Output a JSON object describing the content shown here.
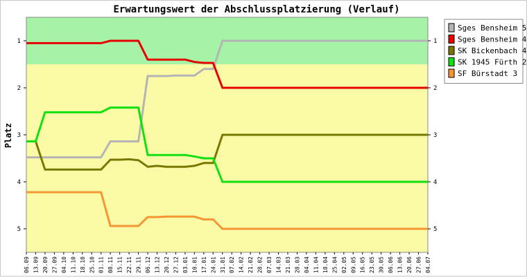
{
  "chart_data": {
    "type": "line",
    "title": "Erwartungswert der Abschlussplatzierung (Verlauf)",
    "ylabel": "Platz",
    "xlabel": "",
    "ylim": [
      0.5,
      5.5
    ],
    "y_ticks": [
      "1",
      "2",
      "3",
      "4",
      "5"
    ],
    "y_reversed": true,
    "bands": [
      {
        "from": 0.5,
        "to": 1.5,
        "color": "#a6f2a6"
      },
      {
        "from": 1.5,
        "to": 5.5,
        "color": "#fafaa6"
      }
    ],
    "x": [
      "06.09",
      "13.09",
      "20.09",
      "27.09",
      "04.10",
      "11.10",
      "18.10",
      "25.10",
      "01.11",
      "08.11",
      "15.11",
      "22.11",
      "29.11",
      "06.12",
      "13.12",
      "20.12",
      "27.12",
      "03.01",
      "10.01",
      "17.01",
      "24.01",
      "31.01",
      "07.02",
      "14.02",
      "21.02",
      "28.02",
      "07.03",
      "14.03",
      "21.03",
      "28.03",
      "04.04",
      "11.04",
      "18.04",
      "25.04",
      "02.05",
      "09.05",
      "16.05",
      "23.05",
      "30.05",
      "06.06",
      "13.06",
      "20.06",
      "27.06",
      "04.07"
    ],
    "series": [
      {
        "name": "Sges Bensheim 5",
        "color": "#b4b4b4",
        "values": [
          3.48,
          3.48,
          3.48,
          3.48,
          3.48,
          3.48,
          3.48,
          3.48,
          3.48,
          3.14,
          3.14,
          3.14,
          3.14,
          1.75,
          1.75,
          1.75,
          1.74,
          1.74,
          1.74,
          1.6,
          1.6,
          1,
          1,
          1,
          1,
          1,
          1,
          1,
          1,
          1,
          1,
          1,
          1,
          1,
          1,
          1,
          1,
          1,
          1,
          1,
          1,
          1,
          1,
          1
        ]
      },
      {
        "name": "Sges Bensheim 4",
        "color": "#e60000",
        "values": [
          1.05,
          1.05,
          1.05,
          1.05,
          1.05,
          1.05,
          1.05,
          1.05,
          1.05,
          1,
          1,
          1,
          1,
          1.4,
          1.4,
          1.4,
          1.4,
          1.4,
          1.45,
          1.47,
          1.47,
          2,
          2,
          2,
          2,
          2,
          2,
          2,
          2,
          2,
          2,
          2,
          2,
          2,
          2,
          2,
          2,
          2,
          2,
          2,
          2,
          2,
          2,
          2
        ]
      },
      {
        "name": "SK Bickenbach 4",
        "color": "#787800",
        "values": [
          3.14,
          3.14,
          3.74,
          3.74,
          3.74,
          3.74,
          3.74,
          3.74,
          3.74,
          3.53,
          3.53,
          3.52,
          3.54,
          3.68,
          3.66,
          3.68,
          3.68,
          3.68,
          3.66,
          3.6,
          3.6,
          3,
          3,
          3,
          3,
          3,
          3,
          3,
          3,
          3,
          3,
          3,
          3,
          3,
          3,
          3,
          3,
          3,
          3,
          3,
          3,
          3,
          3,
          3
        ]
      },
      {
        "name": "SK 1945 Fürth 2",
        "color": "#10e010",
        "values": [
          3.14,
          3.14,
          2.52,
          2.52,
          2.52,
          2.52,
          2.52,
          2.52,
          2.52,
          2.42,
          2.42,
          2.42,
          2.42,
          3.43,
          3.43,
          3.43,
          3.43,
          3.43,
          3.46,
          3.5,
          3.5,
          4,
          4,
          4,
          4,
          4,
          4,
          4,
          4,
          4,
          4,
          4,
          4,
          4,
          4,
          4,
          4,
          4,
          4,
          4,
          4,
          4,
          4,
          4
        ]
      },
      {
        "name": "SF Bürstadt 3",
        "color": "#f59632",
        "values": [
          4.22,
          4.22,
          4.22,
          4.22,
          4.22,
          4.22,
          4.22,
          4.22,
          4.22,
          4.94,
          4.94,
          4.94,
          4.94,
          4.75,
          4.75,
          4.74,
          4.74,
          4.74,
          4.74,
          4.8,
          4.8,
          5,
          5,
          5,
          5,
          5,
          5,
          5,
          5,
          5,
          5,
          5,
          5,
          5,
          5,
          5,
          5,
          5,
          5,
          5,
          5,
          5,
          5,
          5
        ]
      }
    ]
  }
}
